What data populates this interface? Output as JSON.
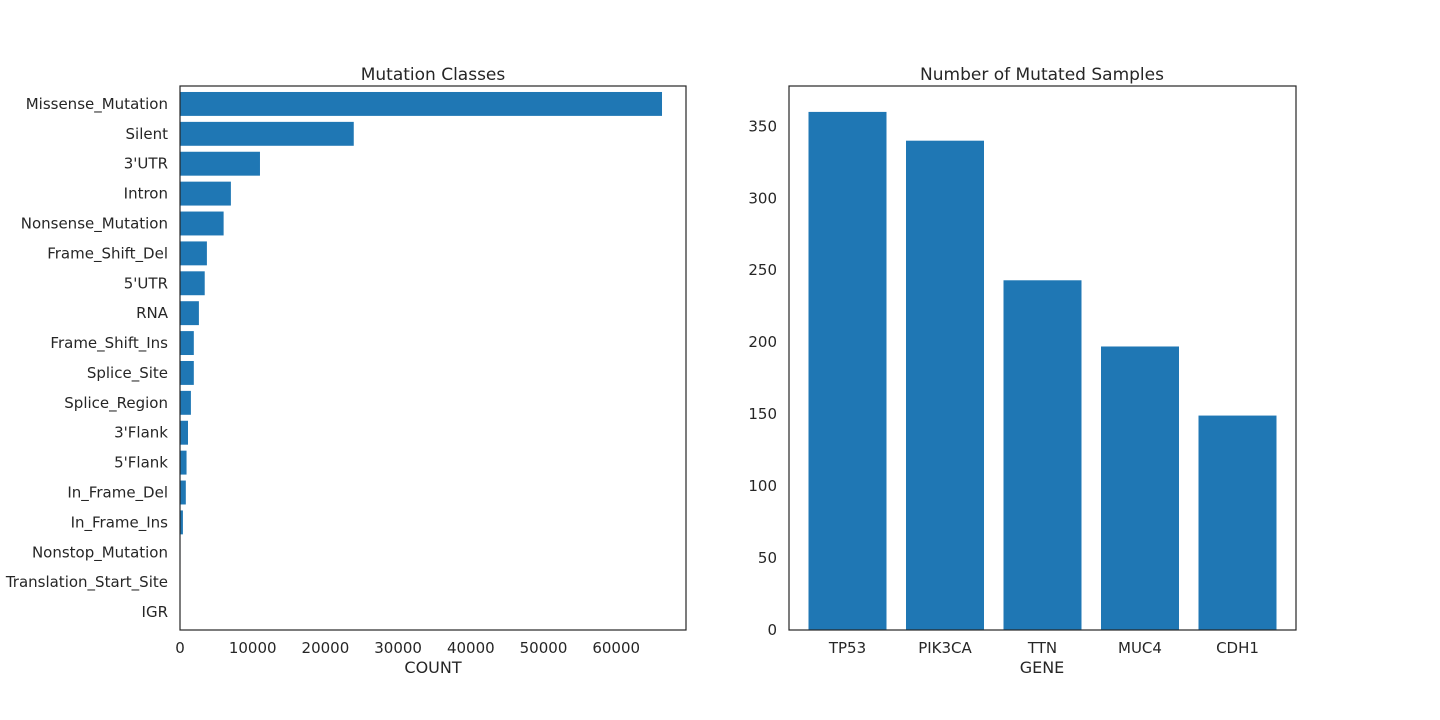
{
  "chart_data": [
    {
      "type": "bar",
      "orientation": "horizontal",
      "title": "Mutation Classes",
      "xlabel": "COUNT",
      "ylabel": "",
      "categories": [
        "Missense_Mutation",
        "Silent",
        "3'UTR",
        "Intron",
        "Nonsense_Mutation",
        "Frame_Shift_Del",
        "5'UTR",
        "RNA",
        "Frame_Shift_Ins",
        "Splice_Site",
        "Splice_Region",
        "3'Flank",
        "5'Flank",
        "In_Frame_Del",
        "In_Frame_Ins",
        "Nonstop_Mutation",
        "Translation_Start_Site",
        "IGR"
      ],
      "values": [
        66300,
        23900,
        11000,
        7000,
        6000,
        3700,
        3400,
        2600,
        1900,
        1900,
        1500,
        1100,
        900,
        800,
        400,
        70,
        50,
        10
      ],
      "xlim": [
        0,
        69600
      ],
      "xticks": [
        0,
        10000,
        20000,
        30000,
        40000,
        50000,
        60000
      ],
      "grid": false,
      "color": "#1f77b4"
    },
    {
      "type": "bar",
      "orientation": "vertical",
      "title": "Number of Mutated Samples",
      "xlabel": "GENE",
      "ylabel": "",
      "categories": [
        "TP53",
        "PIK3CA",
        "TTN",
        "MUC4",
        "CDH1"
      ],
      "values": [
        360,
        340,
        243,
        197,
        149
      ],
      "ylim": [
        0,
        378
      ],
      "yticks": [
        0,
        50,
        100,
        150,
        200,
        250,
        300,
        350
      ],
      "grid": false,
      "color": "#1f77b4"
    }
  ]
}
